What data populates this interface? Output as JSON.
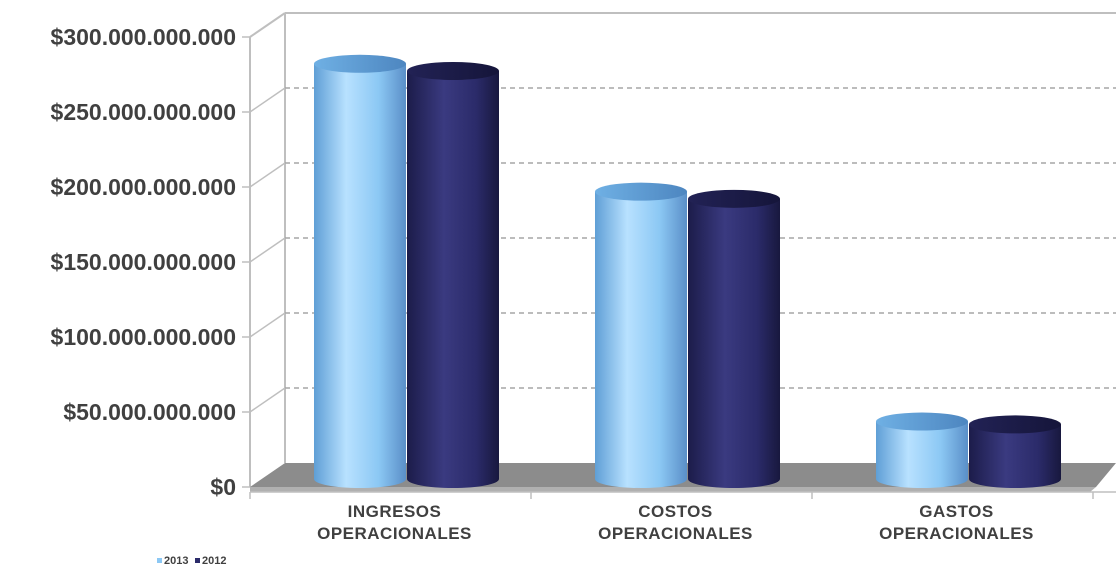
{
  "chart_data": {
    "type": "bar",
    "title": "",
    "xlabel": "",
    "ylabel": "",
    "categories": [
      [
        "INGRESOS",
        "OPERACIONALES"
      ],
      [
        "COSTOS",
        "OPERACIONALES"
      ],
      [
        "GASTOS",
        "OPERACIONALES"
      ]
    ],
    "series": [
      {
        "name": "2013",
        "values": [
          289000000000,
          200000000000,
          40000000000
        ],
        "color": "#8cc8f4"
      },
      {
        "name": "2012",
        "values": [
          284000000000,
          195000000000,
          38000000000
        ],
        "color": "#2b2b6a"
      }
    ],
    "ylim": [
      0,
      300000000000
    ],
    "yticks": [
      0,
      50000000000,
      100000000000,
      150000000000,
      200000000000,
      250000000000,
      300000000000
    ],
    "ytick_labels": [
      "$0",
      "$50.000.000.000",
      "$100.000.000.000",
      "$150.000.000.000",
      "$200.000.000.000",
      "$250.000.000.000",
      "$300.000.000.000"
    ],
    "grid": true,
    "legend": "bottom-left"
  }
}
